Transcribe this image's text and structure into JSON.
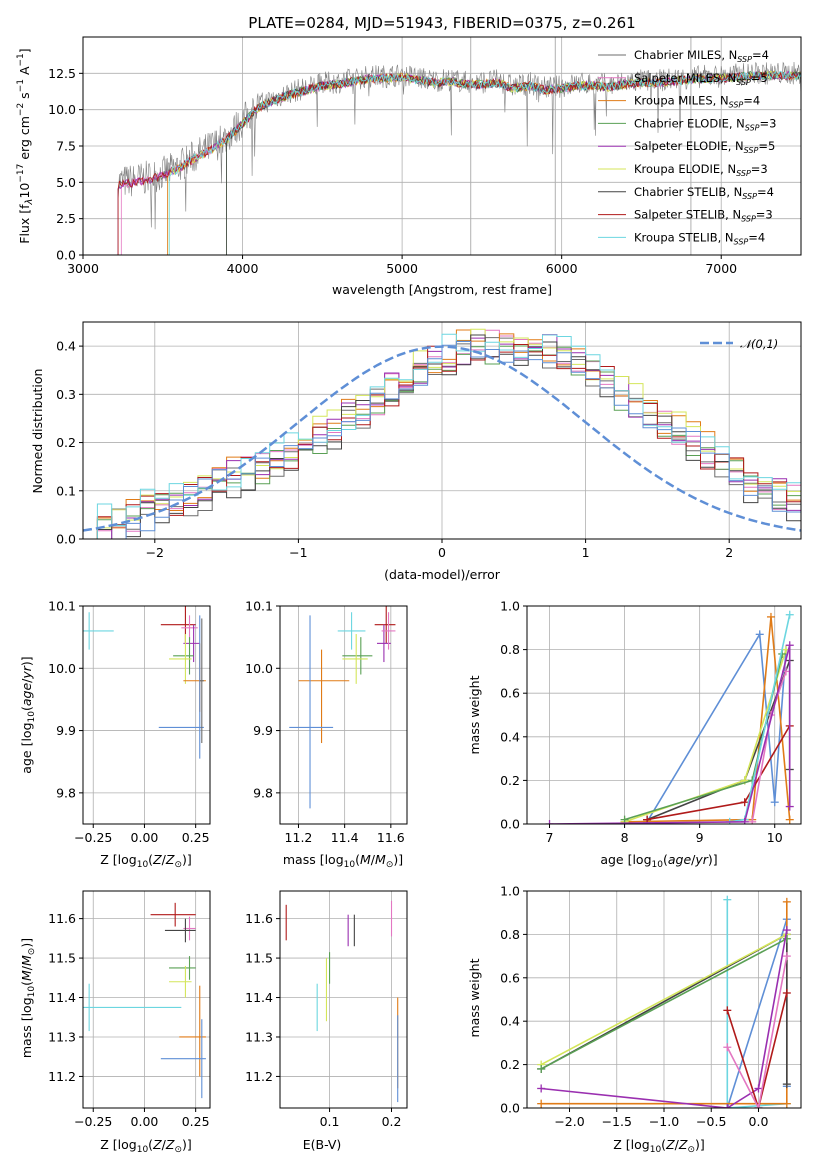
{
  "colors": {
    "chabrier_miles": "#6d6d6d",
    "salpeter_miles": "#e377c2",
    "kroupa_miles": "#e07b17",
    "chabrier_elodie": "#5aa055",
    "salpeter_elodie": "#9a2fb0",
    "kroupa_elodie": "#d4e65a",
    "chabrier_stelib": "#444444",
    "salpeter_stelib": "#b01a1a",
    "kroupa_stelib": "#6cd6e0",
    "alt_blue": "#5f8fd6",
    "gauss": "#5f8fd6"
  },
  "chart_data": [
    {
      "id": "spectrum",
      "type": "line",
      "title": "PLATE=0284, MJD=51943, FIBERID=0375, z=0.261",
      "xlabel": "wavelength [Angstrom, rest frame]",
      "ylabel": "Flux [fλ10⁻¹⁷ erg cm⁻² s⁻¹ A⁻¹]",
      "xlim": [
        3000,
        7500
      ],
      "ylim": [
        0,
        15
      ],
      "xticks": [
        "3000",
        "4000",
        "5000",
        "6000",
        "7000"
      ],
      "yticks": [
        "0.0",
        "2.5",
        "5.0",
        "7.5",
        "10.0",
        "12.5"
      ],
      "data_continuum": {
        "x": [
          3220,
          3300,
          3400,
          3500,
          3600,
          3700,
          3800,
          3900,
          4000,
          4100,
          4200,
          4300,
          4400,
          4500,
          4600,
          4700,
          4800,
          4900,
          5000,
          5100,
          5200,
          5300,
          5400,
          5500,
          5600,
          5700,
          5800,
          5900,
          6000,
          6100,
          6200,
          6300,
          6400,
          6500,
          6600,
          6700,
          6800,
          6900,
          7000,
          7100,
          7200,
          7300
        ],
        "y": [
          5.0,
          5.1,
          5.3,
          5.6,
          6.1,
          6.8,
          7.4,
          8.1,
          9.2,
          10.3,
          10.8,
          11.2,
          11.5,
          11.8,
          11.9,
          12.1,
          12.3,
          12.3,
          12.4,
          12.2,
          12.0,
          12.1,
          11.9,
          11.9,
          12.0,
          11.6,
          11.8,
          11.5,
          11.6,
          11.8,
          11.8,
          11.7,
          11.9,
          12.0,
          12.0,
          12.1,
          12.2,
          12.3,
          12.3,
          12.4,
          12.5,
          12.5
        ]
      },
      "model_starts": [
        3220,
        3240,
        3530,
        3900,
        3220,
        3540,
        3900,
        3220,
        3540
      ],
      "legend": [
        "Chabrier MILES, N_SSP=4",
        "Salpeter MILES, N_SSP=5",
        "Kroupa MILES, N_SSP=4",
        "Chabrier ELODIE, N_SSP=3",
        "Salpeter ELODIE, N_SSP=5",
        "Kroupa ELODIE, N_SSP=3",
        "Chabrier STELIB, N_SSP=4",
        "Salpeter STELIB, N_SSP=3",
        "Kroupa STELIB, N_SSP=4"
      ],
      "vlines": [
        5430,
        5960,
        6810
      ]
    },
    {
      "id": "residuals",
      "type": "histogram",
      "xlabel": "(data-model)/error",
      "ylabel": "Normed distribution",
      "xlim": [
        -2.5,
        2.5
      ],
      "ylim": [
        0,
        0.45
      ],
      "xticks": [
        "−2",
        "−1",
        "0",
        "1",
        "2"
      ],
      "yticks": [
        "0.0",
        "0.1",
        "0.2",
        "0.3",
        "0.4"
      ],
      "bin_width": 0.1,
      "reference_heights": [
        0.02,
        0.03,
        0.04,
        0.05,
        0.06,
        0.07,
        0.08,
        0.09,
        0.1,
        0.12,
        0.13,
        0.14,
        0.15,
        0.17,
        0.18,
        0.2,
        0.22,
        0.23,
        0.25,
        0.27,
        0.29,
        0.31,
        0.33,
        0.35,
        0.37,
        0.38,
        0.39,
        0.4,
        0.4,
        0.41,
        0.4,
        0.4,
        0.39,
        0.38,
        0.36,
        0.35,
        0.33,
        0.31,
        0.28,
        0.26,
        0.24,
        0.22,
        0.2,
        0.18,
        0.16,
        0.14,
        0.12,
        0.1,
        0.09,
        0.08
      ],
      "gaussian_label": "𝒩(0,1)"
    },
    {
      "id": "age_vs_Z",
      "type": "errorbar",
      "xlabel": "Z [log10(Z/Z⊙)]",
      "ylabel": "age  [log10(age/yr)]",
      "xlim": [
        -0.3,
        0.32
      ],
      "ylim": [
        9.75,
        10.1
      ],
      "xticks": [
        "−0.25",
        "0.00",
        "0.25"
      ],
      "yticks": [
        "9.8",
        "9.9",
        "10.0",
        "10.1"
      ],
      "points": [
        {
          "x": -0.27,
          "y": 10.06,
          "xerr": [
            0.12,
            0.12
          ],
          "yerr": [
            0.03,
            0.03
          ],
          "c": "kroupa_stelib"
        },
        {
          "x": 0.2,
          "y": 10.07,
          "xerr": [
            0.12,
            0.05
          ],
          "yerr": [
            0.03,
            0.03
          ],
          "c": "salpeter_stelib"
        },
        {
          "x": 0.22,
          "y": 10.065,
          "xerr": [
            0.04,
            0.04
          ],
          "yerr": [
            0.02,
            0.02
          ],
          "c": "salpeter_miles"
        },
        {
          "x": 0.24,
          "y": 10.04,
          "xerr": [
            0.05,
            0.03
          ],
          "yerr": [
            0.03,
            0.03
          ],
          "c": "salpeter_elodie"
        },
        {
          "x": 0.22,
          "y": 10.02,
          "xerr": [
            0.08,
            0.02
          ],
          "yerr": [
            0.03,
            0.03
          ],
          "c": "chabrier_elodie"
        },
        {
          "x": 0.2,
          "y": 10.015,
          "xerr": [
            0.08,
            0.03
          ],
          "yerr": [
            0.04,
            0.04
          ],
          "c": "kroupa_elodie"
        },
        {
          "x": 0.27,
          "y": 9.98,
          "xerr": [
            0.08,
            0.03
          ],
          "yerr": [
            0.05,
            0.06
          ],
          "c": "kroupa_miles"
        },
        {
          "x": 0.27,
          "y": 9.905,
          "xerr": [
            0.2,
            0.02
          ],
          "yerr": [
            0.05,
            0.18
          ],
          "c": "alt_blue"
        },
        {
          "x": 0.28,
          "y": 9.98,
          "xerr": [
            0.01,
            0.01
          ],
          "yerr": [
            0.1,
            0.1
          ],
          "c": "chabrier_miles"
        }
      ]
    },
    {
      "id": "age_vs_mass",
      "type": "errorbar",
      "xlabel": "mass [log10(M/M⊙)]",
      "ylabel": "",
      "xlim": [
        11.12,
        11.67
      ],
      "ylim": [
        9.75,
        10.1
      ],
      "xticks": [
        "11.2",
        "11.4",
        "11.6"
      ],
      "yticks": [
        "9.8",
        "9.9",
        "10.0",
        "10.1"
      ],
      "points": [
        {
          "x": 11.58,
          "y": 10.07,
          "xerr": [
            0.05,
            0.04
          ],
          "yerr": [
            0.03,
            0.03
          ],
          "c": "salpeter_stelib"
        },
        {
          "x": 11.57,
          "y": 10.04,
          "xerr": [
            0.03,
            0.03
          ],
          "yerr": [
            0.03,
            0.03
          ],
          "c": "salpeter_elodie"
        },
        {
          "x": 11.59,
          "y": 10.06,
          "xerr": [
            0.03,
            0.03
          ],
          "yerr": [
            0.03,
            0.03
          ],
          "c": "salpeter_miles"
        },
        {
          "x": 11.43,
          "y": 10.06,
          "xerr": [
            0.06,
            0.06
          ],
          "yerr": [
            0.03,
            0.03
          ],
          "c": "kroupa_stelib"
        },
        {
          "x": 11.47,
          "y": 10.02,
          "xerr": [
            0.08,
            0.05
          ],
          "yerr": [
            0.03,
            0.03
          ],
          "c": "chabrier_elodie"
        },
        {
          "x": 11.45,
          "y": 10.015,
          "xerr": [
            0.06,
            0.05
          ],
          "yerr": [
            0.04,
            0.04
          ],
          "c": "kroupa_elodie"
        },
        {
          "x": 11.3,
          "y": 9.98,
          "xerr": [
            0.1,
            0.12
          ],
          "yerr": [
            0.1,
            0.05
          ],
          "c": "kroupa_miles"
        },
        {
          "x": 11.25,
          "y": 9.905,
          "xerr": [
            0.09,
            0.1
          ],
          "yerr": [
            0.13,
            0.18
          ],
          "c": "alt_blue"
        }
      ]
    },
    {
      "id": "weight_vs_age",
      "type": "line",
      "xlabel": "age  [log10(age/yr)]",
      "ylabel": "mass weight",
      "xlim": [
        6.7,
        10.35
      ],
      "ylim": [
        0,
        1
      ],
      "xticks": [
        "7",
        "8",
        "9",
        "10"
      ],
      "yticks": [
        "0.0",
        "0.2",
        "0.4",
        "0.6",
        "0.8",
        "1.0"
      ],
      "series": [
        {
          "c": "alt_blue",
          "x": [
            8.3,
            9.8,
            10.0,
            10.15
          ],
          "y": [
            0.01,
            0.87,
            0.1,
            0.8
          ]
        },
        {
          "c": "kroupa_miles",
          "x": [
            8.0,
            9.7,
            9.95,
            10.2
          ],
          "y": [
            0.01,
            0.02,
            0.95,
            0.02
          ]
        },
        {
          "c": "chabrier_stelib",
          "x": [
            8.3,
            9.6,
            10.2,
            10.2
          ],
          "y": [
            0.02,
            0.2,
            0.75,
            0.25
          ]
        },
        {
          "c": "salpeter_stelib",
          "x": [
            8.3,
            9.6,
            10.2
          ],
          "y": [
            0.02,
            0.1,
            0.45
          ]
        },
        {
          "c": "kroupa_elodie",
          "x": [
            8.0,
            9.6,
            10.15
          ],
          "y": [
            0.01,
            0.2,
            0.8
          ]
        },
        {
          "c": "chabrier_elodie",
          "x": [
            8.0,
            9.7,
            10.1
          ],
          "y": [
            0.02,
            0.2,
            0.78
          ]
        },
        {
          "c": "salpeter_miles",
          "x": [
            9.7,
            9.95,
            10.15
          ],
          "y": [
            0.01,
            0.5,
            0.7
          ]
        },
        {
          "c": "kroupa_stelib",
          "x": [
            9.4,
            9.6,
            10.2
          ],
          "y": [
            0.01,
            0.02,
            0.96
          ]
        },
        {
          "c": "salpeter_elodie",
          "x": [
            7.0,
            9.6,
            10.2,
            10.2
          ],
          "y": [
            0.0,
            0.01,
            0.82,
            0.08
          ]
        }
      ]
    },
    {
      "id": "mass_vs_Z",
      "type": "errorbar",
      "xlabel": "Z [log10(Z/Z⊙)]",
      "ylabel": "mass [log10(M/M⊙)]",
      "xlim": [
        -0.3,
        0.32
      ],
      "ylim": [
        11.12,
        11.67
      ],
      "xticks": [
        "−0.25",
        "0.00",
        "0.25"
      ],
      "yticks": [
        "11.2",
        "11.3",
        "11.4",
        "11.5",
        "11.6"
      ],
      "points": [
        {
          "x": 0.15,
          "y": 11.61,
          "xerr": [
            0.12,
            0.1
          ],
          "yerr": [
            0.03,
            0.03
          ],
          "c": "salpeter_stelib"
        },
        {
          "x": 0.22,
          "y": 11.575,
          "xerr": [
            0.03,
            0.03
          ],
          "yerr": [
            0.03,
            0.03
          ],
          "c": "salpeter_miles"
        },
        {
          "x": 0.2,
          "y": 11.57,
          "xerr": [
            0.1,
            0.05
          ],
          "yerr": [
            0.03,
            0.03
          ],
          "c": "chabrier_stelib"
        },
        {
          "x": 0.22,
          "y": 11.475,
          "xerr": [
            0.1,
            0.03
          ],
          "yerr": [
            0.03,
            0.03
          ],
          "c": "chabrier_elodie"
        },
        {
          "x": 0.2,
          "y": 11.44,
          "xerr": [
            0.08,
            0.03
          ],
          "yerr": [
            0.04,
            0.04
          ],
          "c": "kroupa_elodie"
        },
        {
          "x": -0.27,
          "y": 11.375,
          "xerr": [
            0.1,
            0.45
          ],
          "yerr": [
            0.06,
            0.06
          ],
          "c": "kroupa_stelib"
        },
        {
          "x": 0.27,
          "y": 11.3,
          "xerr": [
            0.1,
            0.03
          ],
          "yerr": [
            0.1,
            0.13
          ],
          "c": "kroupa_miles"
        },
        {
          "x": 0.28,
          "y": 11.245,
          "xerr": [
            0.2,
            0.02
          ],
          "yerr": [
            0.1,
            0.1
          ],
          "c": "alt_blue"
        }
      ]
    },
    {
      "id": "mass_vs_ebv",
      "type": "errorbar",
      "xlabel": "E(B-V)",
      "ylabel": "",
      "xlim": [
        0.02,
        0.225
      ],
      "ylim": [
        11.12,
        11.67
      ],
      "xticks": [
        "0.1",
        "0.2"
      ],
      "yticks": [
        "11.2",
        "11.3",
        "11.4",
        "11.5",
        "11.6"
      ],
      "points": [
        {
          "x": 0.03,
          "y": 11.59,
          "xerr": [
            0,
            0
          ],
          "yerr": [
            0.045,
            0.045
          ],
          "c": "salpeter_stelib"
        },
        {
          "x": 0.13,
          "y": 11.57,
          "xerr": [
            0,
            0
          ],
          "yerr": [
            0.04,
            0.04
          ],
          "c": "salpeter_elodie"
        },
        {
          "x": 0.14,
          "y": 11.57,
          "xerr": [
            0,
            0
          ],
          "yerr": [
            0.04,
            0.04
          ],
          "c": "chabrier_stelib"
        },
        {
          "x": 0.2,
          "y": 11.6,
          "xerr": [
            0,
            0
          ],
          "yerr": [
            0.045,
            0.045
          ],
          "c": "salpeter_miles"
        },
        {
          "x": 0.1,
          "y": 11.475,
          "xerr": [
            0,
            0
          ],
          "yerr": [
            0.04,
            0.04
          ],
          "c": "chabrier_elodie"
        },
        {
          "x": 0.095,
          "y": 11.42,
          "xerr": [
            0,
            0
          ],
          "yerr": [
            0.08,
            0.08
          ],
          "c": "kroupa_elodie"
        },
        {
          "x": 0.08,
          "y": 11.375,
          "xerr": [
            0,
            0
          ],
          "yerr": [
            0.06,
            0.06
          ],
          "c": "kroupa_stelib"
        },
        {
          "x": 0.21,
          "y": 11.3,
          "xerr": [
            0,
            0
          ],
          "yerr": [
            0.13,
            0.1
          ],
          "c": "kroupa_miles"
        },
        {
          "x": 0.21,
          "y": 11.245,
          "xerr": [
            0,
            0
          ],
          "yerr": [
            0.11,
            0.11
          ],
          "c": "alt_blue"
        }
      ]
    },
    {
      "id": "weight_vs_Z",
      "type": "line",
      "xlabel": "Z [log10(Z/Z⊙)]",
      "ylabel": "mass weight",
      "xlim": [
        -2.45,
        0.45
      ],
      "ylim": [
        0,
        1
      ],
      "xticks": [
        "−2.0",
        "−1.5",
        "−1.0",
        "−0.5",
        "0.0"
      ],
      "yticks": [
        "0.0",
        "0.2",
        "0.4",
        "0.6",
        "0.8",
        "1.0"
      ],
      "series": [
        {
          "c": "kroupa_stelib",
          "x": [
            -0.33,
            -0.33,
            0.3
          ],
          "y": [
            0.96,
            0.0,
            0.02
          ]
        },
        {
          "c": "alt_blue",
          "x": [
            -0.33,
            0.3,
            0.3
          ],
          "y": [
            0.0,
            0.87,
            0.1
          ]
        },
        {
          "c": "kroupa_miles",
          "x": [
            -2.3,
            0.3,
            0.3
          ],
          "y": [
            0.02,
            0.02,
            0.95
          ]
        },
        {
          "c": "chabrier_stelib",
          "x": [
            -2.3,
            0.3,
            0.3
          ],
          "y": [
            0.18,
            0.8,
            0.11
          ]
        },
        {
          "c": "kroupa_elodie",
          "x": [
            -2.3,
            0.3
          ],
          "y": [
            0.2,
            0.8
          ]
        },
        {
          "c": "chabrier_elodie",
          "x": [
            -2.3,
            0.3
          ],
          "y": [
            0.18,
            0.78
          ]
        },
        {
          "c": "salpeter_elodie",
          "x": [
            -2.3,
            -0.33,
            0.0,
            0.3
          ],
          "y": [
            0.09,
            0.0,
            0.09,
            0.82
          ]
        },
        {
          "c": "salpeter_stelib",
          "x": [
            -0.33,
            0.0,
            0.3
          ],
          "y": [
            0.45,
            0.0,
            0.53
          ]
        },
        {
          "c": "salpeter_miles",
          "x": [
            -0.33,
            0.0,
            0.3
          ],
          "y": [
            0.28,
            0.0,
            0.7
          ]
        }
      ]
    }
  ]
}
